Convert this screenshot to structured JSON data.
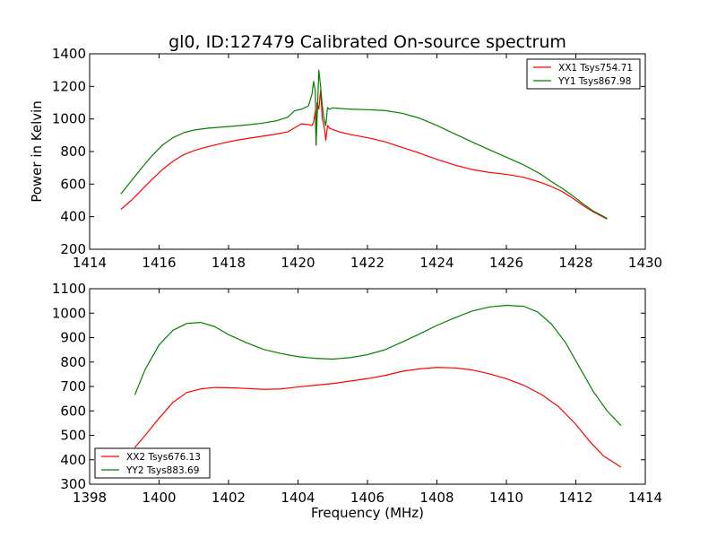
{
  "figure": {
    "title": "gl0, ID:127479 Calibrated On-source spectrum"
  },
  "chart_data": [
    {
      "type": "line",
      "title": "gl0, ID:127479 Calibrated On-source spectrum",
      "xlabel": "",
      "ylabel": "Power in Kelvin",
      "xlim": [
        1414,
        1430
      ],
      "ylim": [
        200,
        1400
      ],
      "xticks": [
        "1414",
        "1416",
        "1418",
        "1420",
        "1422",
        "1424",
        "1426",
        "1428",
        "1430"
      ],
      "yticks": [
        "200",
        "400",
        "600",
        "800",
        "1000",
        "1200",
        "1400"
      ],
      "grid": false,
      "legend_position": "top-right",
      "series": [
        {
          "name": "XX1 Tsys754.71",
          "color": "#ff0000",
          "x": [
            1414.9,
            1415.2,
            1415.5,
            1415.8,
            1416.1,
            1416.4,
            1416.7,
            1417.0,
            1417.4,
            1417.8,
            1418.2,
            1418.6,
            1419.0,
            1419.4,
            1419.7,
            1419.9,
            1420.1,
            1420.3,
            1420.4,
            1420.45,
            1420.5,
            1420.52,
            1420.55,
            1420.6,
            1420.65,
            1420.7,
            1420.75,
            1420.8,
            1420.85,
            1420.9,
            1421.0,
            1421.2,
            1421.5,
            1422.0,
            1422.5,
            1423.0,
            1423.5,
            1424.0,
            1424.5,
            1425.0,
            1425.5,
            1426.0,
            1426.5,
            1427.0,
            1427.3,
            1427.6,
            1427.9,
            1428.2,
            1428.5,
            1428.9
          ],
          "y": [
            445,
            500,
            565,
            630,
            690,
            740,
            780,
            805,
            830,
            850,
            868,
            882,
            895,
            908,
            920,
            945,
            970,
            965,
            960,
            980,
            1050,
            840,
            1100,
            1060,
            1175,
            1000,
            960,
            870,
            960,
            945,
            935,
            920,
            905,
            885,
            860,
            825,
            790,
            752,
            718,
            690,
            672,
            660,
            642,
            610,
            585,
            555,
            515,
            470,
            430,
            385
          ]
        },
        {
          "name": "YY1 Tsys867.98",
          "color": "#008000",
          "x": [
            1414.9,
            1415.2,
            1415.5,
            1415.8,
            1416.1,
            1416.4,
            1416.7,
            1417.0,
            1417.4,
            1417.8,
            1418.2,
            1418.6,
            1419.0,
            1419.4,
            1419.7,
            1419.9,
            1420.1,
            1420.3,
            1420.4,
            1420.45,
            1420.5,
            1420.52,
            1420.55,
            1420.6,
            1420.65,
            1420.7,
            1420.75,
            1420.8,
            1420.85,
            1420.9,
            1421.0,
            1421.5,
            1422.0,
            1422.5,
            1423.0,
            1423.5,
            1424.0,
            1424.5,
            1425.0,
            1425.5,
            1426.0,
            1426.5,
            1427.0,
            1427.3,
            1427.6,
            1427.9,
            1428.2,
            1428.5,
            1428.9
          ],
          "y": [
            540,
            620,
            700,
            775,
            840,
            885,
            915,
            932,
            943,
            950,
            957,
            965,
            975,
            990,
            1010,
            1050,
            1060,
            1080,
            1150,
            1230,
            1170,
            840,
            1000,
            1300,
            1200,
            1080,
            1000,
            960,
            1070,
            1060,
            1068,
            1060,
            1057,
            1052,
            1035,
            1005,
            960,
            910,
            860,
            812,
            765,
            718,
            660,
            615,
            575,
            530,
            480,
            435,
            390
          ]
        }
      ]
    },
    {
      "type": "line",
      "title": "",
      "xlabel": "Frequency (MHz)",
      "ylabel": "",
      "xlim": [
        1398,
        1414
      ],
      "ylim": [
        300,
        1100
      ],
      "xticks": [
        "1398",
        "1400",
        "1402",
        "1404",
        "1406",
        "1408",
        "1410",
        "1412",
        "1414"
      ],
      "yticks": [
        "300",
        "400",
        "500",
        "600",
        "700",
        "800",
        "900",
        "1000",
        "1100"
      ],
      "grid": false,
      "legend_position": "bottom-left",
      "series": [
        {
          "name": "XX2 Tsys676.13",
          "color": "#ff0000",
          "x": [
            1399.3,
            1399.6,
            1400.0,
            1400.4,
            1400.8,
            1401.2,
            1401.6,
            1402.0,
            1402.5,
            1403.0,
            1403.5,
            1404.0,
            1404.5,
            1405.0,
            1405.5,
            1406.0,
            1406.5,
            1407.0,
            1407.5,
            1408.0,
            1408.5,
            1409.0,
            1409.5,
            1410.0,
            1410.5,
            1411.0,
            1411.5,
            1412.0,
            1412.4,
            1412.8,
            1413.3
          ],
          "y": [
            450,
            500,
            570,
            635,
            675,
            690,
            696,
            695,
            692,
            688,
            690,
            698,
            705,
            712,
            722,
            732,
            745,
            762,
            772,
            778,
            776,
            768,
            752,
            732,
            705,
            668,
            618,
            545,
            475,
            415,
            370
          ]
        },
        {
          "name": "YY2 Tsys883.69",
          "color": "#008000",
          "x": [
            1399.3,
            1399.6,
            1400.0,
            1400.4,
            1400.8,
            1401.2,
            1401.6,
            1402.0,
            1402.5,
            1403.0,
            1403.5,
            1404.0,
            1404.5,
            1405.0,
            1405.5,
            1406.0,
            1406.5,
            1407.0,
            1407.5,
            1408.0,
            1408.5,
            1409.0,
            1409.5,
            1410.0,
            1410.5,
            1410.9,
            1411.3,
            1411.7,
            1412.1,
            1412.5,
            1412.9,
            1413.3
          ],
          "y": [
            665,
            770,
            870,
            930,
            958,
            962,
            945,
            912,
            880,
            852,
            835,
            822,
            815,
            812,
            818,
            830,
            850,
            882,
            915,
            950,
            980,
            1008,
            1025,
            1032,
            1028,
            1005,
            955,
            880,
            780,
            680,
            600,
            540
          ]
        }
      ]
    }
  ]
}
